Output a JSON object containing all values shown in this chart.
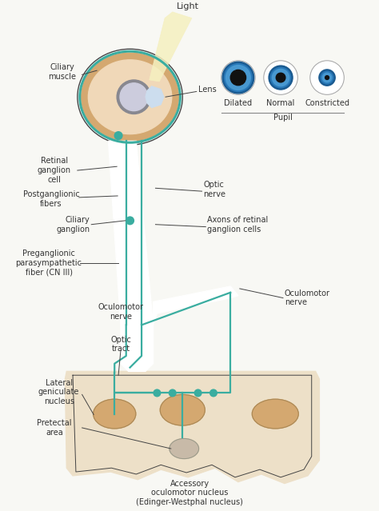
{
  "bg_color": "#f8f8f4",
  "teal": "#3aada0",
  "outline_color": "#444444",
  "skin_light": "#f0d8b8",
  "skin_mid": "#e8c898",
  "skin_dark": "#d4a870",
  "brain_color": "#ede0c8",
  "gray_area": "#c8baa8",
  "pupil_labels": [
    "Dilated",
    "Normal",
    "Constricted"
  ],
  "pupil_label_group": "Pupil",
  "iris_blue_dark": "#1a5a90",
  "iris_blue_mid": "#2878b8",
  "iris_blue_light": "#4898d0",
  "labels": {
    "light": "Light",
    "ciliary_muscle": "Ciliary\nmuscle",
    "lens": "Lens",
    "retinal_ganglion": "Retinal\nganglion\ncell",
    "postganglionic": "Postganglionic\nfibers",
    "ciliary_ganglion": "Ciliary\nganglion",
    "optic_nerve": "Optic\nnerve",
    "axons_retinal": "Axons of retinal\nganglion cells",
    "preganglionic": "Preganglionic\nparasympathetic\nfiber (CN III)",
    "oculomotor_left": "Oculomotor\nnerve",
    "oculomotor_right": "Oculomotor\nnerve",
    "optic_tract": "Optic\ntract",
    "lateral_geniculate": "Lateral\ngeniculate\nnucleus",
    "pretectal": "Pretectal\narea",
    "accessory": "Accessory\noculomotor nucleus\n(Edinger-Westphal nucleus)"
  }
}
